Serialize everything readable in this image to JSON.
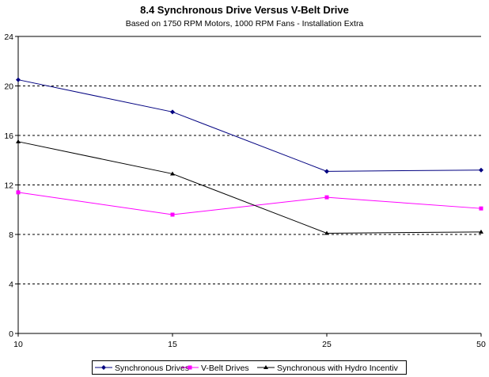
{
  "chart_data": {
    "type": "line",
    "title": "8.4 Synchronous Drive Versus V-Belt Drive",
    "subtitle": "Based on 1750 RPM Motors, 1000 RPM Fans - Installation Extra",
    "xlabel": "",
    "ylabel": "",
    "categories": [
      "10",
      "15",
      "25",
      "50"
    ],
    "ylim": [
      0,
      24
    ],
    "yticks": [
      0,
      4,
      8,
      12,
      16,
      20,
      24
    ],
    "grid": "horizontal dashed",
    "legend_position": "bottom",
    "series": [
      {
        "name": "Synchronous Drives",
        "color": "#000080",
        "marker": "diamond",
        "values": [
          20.5,
          17.9,
          13.1,
          13.2
        ]
      },
      {
        "name": "V-Belt Drives",
        "color": "#ff00ff",
        "marker": "square",
        "values": [
          11.4,
          9.6,
          11.0,
          10.1
        ]
      },
      {
        "name": "Synchronous with Hydro Incentiv",
        "color": "#000000",
        "marker": "triangle",
        "values": [
          15.5,
          12.9,
          8.1,
          8.2
        ]
      }
    ]
  }
}
